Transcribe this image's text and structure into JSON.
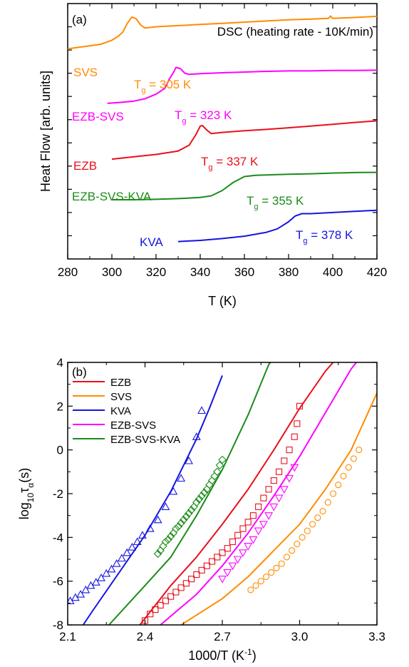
{
  "chart_data": [
    {
      "type": "line",
      "panel_label": "(a)",
      "title": "DSC (heating rate - 10K/min)",
      "xlabel": "T (K)",
      "ylabel": "Heat Flow [arb. units]",
      "xlim": [
        280,
        420
      ],
      "x_ticks": [
        "280",
        "300",
        "320",
        "340",
        "360",
        "380",
        "400",
        "420"
      ],
      "y_tick_count": 10,
      "grid": false,
      "series": [
        {
          "name": "SVS",
          "color": "#FF8C00",
          "tg_label": "305 K",
          "x": [
            280,
            285,
            290,
            295,
            300,
            303,
            305,
            307,
            309,
            311,
            313,
            315,
            320,
            330,
            340,
            350,
            360,
            370,
            380,
            390,
            398,
            399,
            400,
            410,
            420
          ],
          "y": [
            8.05,
            8.12,
            8.18,
            8.25,
            8.42,
            8.6,
            8.78,
            9.15,
            9.42,
            9.35,
            9.08,
            8.95,
            9.0,
            9.05,
            9.1,
            9.15,
            9.2,
            9.25,
            9.3,
            9.33,
            9.36,
            9.46,
            9.36,
            9.4,
            9.45
          ]
        },
        {
          "name": "EZB-SVS",
          "color": "#FF00FF",
          "tg_label": "323 K",
          "x": [
            298,
            305,
            310,
            315,
            320,
            324,
            326,
            328,
            329,
            331,
            333,
            335,
            340,
            350,
            360,
            370,
            380,
            390,
            400,
            410,
            420
          ],
          "y": [
            5.7,
            5.75,
            5.8,
            5.9,
            6.1,
            6.35,
            6.75,
            7.05,
            7.25,
            7.2,
            7.0,
            6.95,
            6.98,
            7.02,
            7.05,
            7.08,
            7.1,
            7.1,
            7.12,
            7.12,
            7.13
          ]
        },
        {
          "name": "EZB",
          "color": "#E8101B",
          "tg_label": "337 K",
          "x": [
            300,
            310,
            320,
            330,
            335,
            338,
            340,
            341,
            343,
            345,
            350,
            360,
            370,
            380,
            390,
            400,
            410,
            420
          ],
          "y": [
            3.3,
            3.4,
            3.5,
            3.65,
            3.9,
            4.35,
            4.72,
            4.75,
            4.55,
            4.4,
            4.45,
            4.52,
            4.58,
            4.65,
            4.72,
            4.8,
            4.88,
            4.95
          ]
        },
        {
          "name": "EZB-SVS-KVA",
          "color": "#1A8C1A",
          "tg_label": "355 K",
          "x": [
            300,
            310,
            320,
            330,
            340,
            345,
            350,
            355,
            360,
            365,
            370,
            380,
            390,
            400,
            410,
            420
          ],
          "y": [
            1.55,
            1.55,
            1.57,
            1.6,
            1.65,
            1.72,
            1.95,
            2.3,
            2.55,
            2.6,
            2.62,
            2.65,
            2.67,
            2.7,
            2.72,
            2.73
          ]
        },
        {
          "name": "KVA",
          "color": "#1515E0",
          "tg_label": "378 K",
          "x": [
            330,
            340,
            350,
            360,
            370,
            375,
            380,
            383,
            386,
            390,
            400,
            410,
            420
          ],
          "y": [
            -0.25,
            -0.2,
            -0.12,
            -0.02,
            0.15,
            0.3,
            0.6,
            0.85,
            0.95,
            0.95,
            1.0,
            1.05,
            1.1
          ]
        }
      ]
    },
    {
      "type": "scatter",
      "panel_label": "(b)",
      "xlabel": "1000/T (K⁻¹)",
      "ylabel": "log₁₀τα(s)",
      "xlim": [
        2.1,
        3.3
      ],
      "ylim": [
        -8,
        4
      ],
      "x_ticks": [
        "2.1",
        "2.4",
        "2.7",
        "3.0",
        "3.3"
      ],
      "y_ticks": [
        "-8",
        "-6",
        "-4",
        "-2",
        "0",
        "2",
        "4"
      ],
      "legend_position": "top-left",
      "grid": false,
      "series": [
        {
          "name": "EZB",
          "color": "#E8101B",
          "marker": "square",
          "fit": {
            "x": [
              2.38,
              2.5,
              2.6,
              2.7,
              2.8,
              2.9,
              3.0,
              3.1,
              3.13
            ],
            "y": [
              -8,
              -6.2,
              -4.9,
              -3.4,
              -1.8,
              0.0,
              1.9,
              3.6,
              4.0
            ]
          },
          "points": {
            "x": [
              2.4,
              2.42,
              2.44,
              2.46,
              2.48,
              2.5,
              2.52,
              2.54,
              2.56,
              2.58,
              2.6,
              2.62,
              2.64,
              2.66,
              2.68,
              2.7,
              2.72,
              2.74,
              2.76,
              2.78,
              2.8,
              2.82,
              2.84,
              2.86,
              2.88,
              2.9,
              2.92,
              2.94,
              2.96,
              2.98,
              2.99,
              3.0
            ],
            "y": [
              -7.8,
              -7.5,
              -7.3,
              -7.1,
              -6.9,
              -6.7,
              -6.5,
              -6.3,
              -6.1,
              -5.9,
              -5.7,
              -5.5,
              -5.3,
              -5.1,
              -4.9,
              -4.7,
              -4.5,
              -4.2,
              -3.9,
              -3.6,
              -3.3,
              -3.0,
              -2.6,
              -2.2,
              -1.8,
              -1.4,
              -1.0,
              -0.5,
              0.0,
              0.6,
              1.2,
              2.0
            ]
          }
        },
        {
          "name": "SVS",
          "color": "#FF8C00",
          "marker": "circle",
          "fit": {
            "x": [
              2.54,
              2.7,
              2.8,
              2.9,
              3.0,
              3.1,
              3.2,
              3.3
            ],
            "y": [
              -8,
              -6.8,
              -5.8,
              -4.6,
              -3.4,
              -1.8,
              0.0,
              2.6
            ]
          },
          "points": {
            "x": [
              2.81,
              2.83,
              2.85,
              2.87,
              2.89,
              2.91,
              2.93,
              2.95,
              2.97,
              2.99,
              3.01,
              3.03,
              3.05,
              3.07,
              3.09,
              3.11,
              3.13,
              3.15,
              3.17,
              3.19,
              3.21,
              3.23
            ],
            "y": [
              -6.4,
              -6.2,
              -6.0,
              -5.8,
              -5.6,
              -5.4,
              -5.2,
              -4.9,
              -4.6,
              -4.3,
              -4.0,
              -3.7,
              -3.4,
              -3.1,
              -2.8,
              -2.4,
              -2.0,
              -1.6,
              -1.2,
              -0.8,
              -0.4,
              0.0
            ]
          }
        },
        {
          "name": "KVA",
          "color": "#1515E0",
          "marker": "triangle-up",
          "fit": {
            "x": [
              2.16,
              2.2,
              2.3,
              2.4,
              2.5,
              2.6,
              2.65,
              2.7
            ],
            "y": [
              -8,
              -7.3,
              -5.6,
              -3.9,
              -1.9,
              0.5,
              1.9,
              3.4
            ]
          },
          "points": {
            "x": [
              2.11,
              2.13,
              2.15,
              2.17,
              2.19,
              2.21,
              2.23,
              2.25,
              2.27,
              2.29,
              2.31,
              2.33,
              2.35,
              2.37,
              2.39,
              2.42,
              2.45,
              2.48,
              2.51,
              2.54,
              2.57,
              2.6,
              2.62
            ],
            "y": [
              -6.9,
              -6.75,
              -6.6,
              -6.4,
              -6.2,
              -6.05,
              -5.85,
              -5.65,
              -5.45,
              -5.2,
              -4.95,
              -4.7,
              -4.45,
              -4.2,
              -3.9,
              -3.6,
              -3.2,
              -2.6,
              -1.9,
              -1.3,
              -0.5,
              0.6,
              1.8
            ]
          }
        },
        {
          "name": "EZB-SVS",
          "color": "#FF00FF",
          "marker": "triangle-down",
          "fit": {
            "x": [
              2.46,
              2.6,
              2.7,
              2.8,
              2.9,
              3.0,
              3.1,
              3.2,
              3.22
            ],
            "y": [
              -8,
              -6.6,
              -5.3,
              -3.8,
              -2.1,
              -0.3,
              1.7,
              3.7,
              4.0
            ]
          },
          "points": {
            "x": [
              2.7,
              2.72,
              2.74,
              2.76,
              2.78,
              2.8,
              2.82,
              2.84,
              2.86,
              2.88,
              2.9,
              2.92,
              2.94,
              2.96,
              2.98
            ],
            "y": [
              -5.9,
              -5.6,
              -5.3,
              -5.0,
              -4.7,
              -4.4,
              -4.1,
              -3.7,
              -3.4,
              -3.0,
              -2.6,
              -2.2,
              -1.8,
              -1.3,
              -0.8
            ]
          }
        },
        {
          "name": "EZB-SVS-KVA",
          "color": "#1A8C1A",
          "marker": "diamond",
          "fit": {
            "x": [
              2.26,
              2.4,
              2.5,
              2.6,
              2.7,
              2.8,
              2.88,
              2.9
            ],
            "y": [
              -8,
              -6.2,
              -4.9,
              -3.0,
              -0.9,
              1.6,
              3.9,
              4.2
            ]
          },
          "points": {
            "x": [
              2.45,
              2.46,
              2.47,
              2.48,
              2.49,
              2.5,
              2.51,
              2.52,
              2.53,
              2.54,
              2.55,
              2.56,
              2.57,
              2.58,
              2.59,
              2.6,
              2.61,
              2.62,
              2.63,
              2.64,
              2.65,
              2.66,
              2.67,
              2.68,
              2.69,
              2.7
            ],
            "y": [
              -4.75,
              -4.6,
              -4.4,
              -4.2,
              -4.1,
              -3.95,
              -3.8,
              -3.6,
              -3.5,
              -3.35,
              -3.2,
              -3.05,
              -2.9,
              -2.75,
              -2.6,
              -2.4,
              -2.25,
              -2.1,
              -1.95,
              -1.8,
              -1.6,
              -1.4,
              -1.2,
              -1.0,
              -0.7,
              -0.45
            ]
          }
        }
      ]
    }
  ]
}
